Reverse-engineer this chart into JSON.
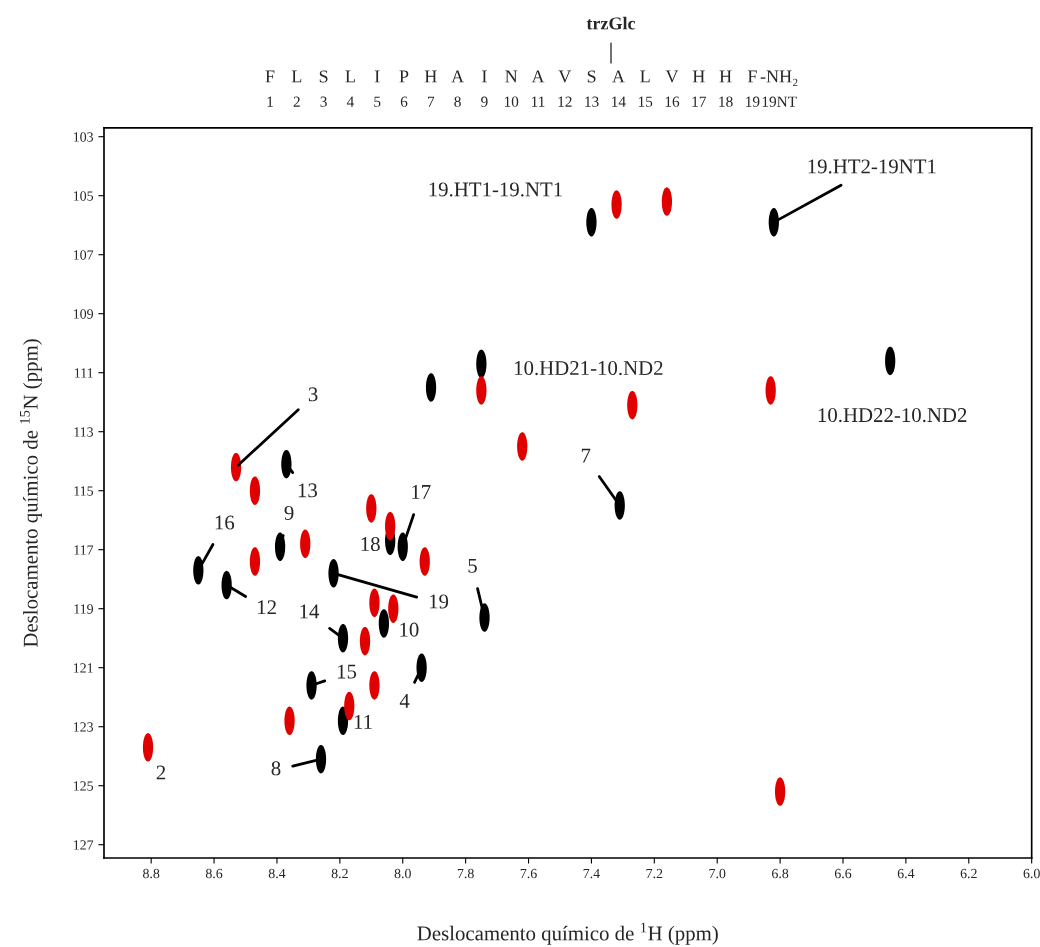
{
  "chart_data": {
    "type": "scatter",
    "xlabel": "Deslocamento químico de $^{1}$H (ppm)",
    "ylabel": "Deslocamento químico de $^{15}$N (ppm)",
    "xlim": [
      8.95,
      6.0
    ],
    "ylim": [
      127.45,
      102.7
    ],
    "xticks": [
      8.8,
      8.6,
      8.4,
      8.2,
      {
        "value": 8,
        "label": "8.0"
      },
      7.8,
      7.6,
      7.4,
      7.2,
      {
        "value": 7,
        "label": "7.0"
      },
      6.8,
      6.6,
      6.4,
      6.2,
      {
        "value": 6,
        "label": "6.0"
      }
    ],
    "yticks": [
      103,
      105,
      107,
      109,
      111,
      113,
      115,
      117,
      119,
      121,
      123,
      125,
      127
    ],
    "grid": false,
    "series": [
      {
        "color": "#000000",
        "x": [
          7.4,
          6.82,
          7.75,
          7.91,
          6.45,
          8.37,
          8.39,
          8.65,
          8.56,
          8.22,
          8.04,
          8.0,
          7.74,
          8.06,
          8.19,
          8.29,
          7.94,
          8.19,
          8.26,
          7.31
        ],
        "values": [
          105.9,
          105.9,
          110.7,
          111.5,
          110.6,
          114.1,
          116.9,
          117.7,
          118.2,
          117.8,
          116.7,
          116.9,
          119.3,
          119.5,
          120.0,
          121.6,
          121.0,
          122.8,
          124.1,
          115.5
        ]
      },
      {
        "color": "#e00000",
        "x": [
          7.32,
          7.16,
          7.75,
          7.27,
          6.83,
          7.62,
          8.53,
          8.47,
          8.31,
          8.47,
          8.1,
          8.04,
          7.93,
          8.09,
          8.03,
          8.12,
          8.09,
          8.17,
          8.36,
          8.81,
          6.8
        ],
        "values": [
          105.3,
          105.2,
          111.6,
          112.1,
          111.6,
          113.5,
          114.2,
          115.0,
          116.8,
          117.4,
          115.6,
          116.2,
          117.4,
          118.8,
          119.0,
          120.1,
          121.6,
          122.3,
          122.8,
          123.7,
          125.2
        ]
      }
    ],
    "annotations": [
      {
        "text": "3",
        "x": 8.53,
        "y": 114.2
      },
      {
        "text": "13",
        "x": 8.37,
        "y": 114.1
      },
      {
        "text": "9",
        "x": 8.39,
        "y": 116.9
      },
      {
        "text": "16",
        "x": 8.65,
        "y": 117.7
      },
      {
        "text": "12",
        "x": 8.56,
        "y": 118.2
      },
      {
        "text": "17",
        "x": 8.0,
        "y": 116.9
      },
      {
        "text": "18",
        "x": 8.04,
        "y": 116.7
      },
      {
        "text": "5",
        "x": 7.74,
        "y": 119.3
      },
      {
        "text": "19",
        "x": 8.22,
        "y": 117.8
      },
      {
        "text": "14",
        "x": 8.19,
        "y": 120.0
      },
      {
        "text": "10",
        "x": 8.06,
        "y": 119.5
      },
      {
        "text": "15",
        "x": 8.29,
        "y": 121.6
      },
      {
        "text": "4",
        "x": 7.94,
        "y": 121.0
      },
      {
        "text": "11",
        "x": 8.19,
        "y": 122.8
      },
      {
        "text": "8",
        "x": 8.26,
        "y": 124.1
      },
      {
        "text": "2",
        "x": 8.81,
        "y": 123.7
      },
      {
        "text": "7",
        "x": 7.31,
        "y": 115.5
      },
      {
        "text": "19.HT1-19.NT1",
        "x": 7.4,
        "y": 105.9
      },
      {
        "text": "19.HT2-19NT1",
        "x": 6.82,
        "y": 105.9
      },
      {
        "text": "10.HD21-10.ND2",
        "x": 7.75,
        "y": 110.7
      },
      {
        "text": "10.HD22-10.ND2",
        "x": 6.45,
        "y": 110.6
      },
      "trzGlc",
      "F",
      "L",
      "S",
      "L",
      "I",
      "P",
      "H",
      "A",
      "I",
      "N",
      "A",
      "V",
      "S",
      "A",
      "L",
      "V",
      "H",
      "H",
      "F",
      "-NH₂",
      "1",
      "2",
      "3",
      "4",
      "5",
      "6",
      "7",
      "8",
      "9",
      "10",
      "11",
      "12",
      "13",
      "14",
      "15",
      "16",
      "17",
      "18",
      "19",
      "19NT"
    ]
  }
}
